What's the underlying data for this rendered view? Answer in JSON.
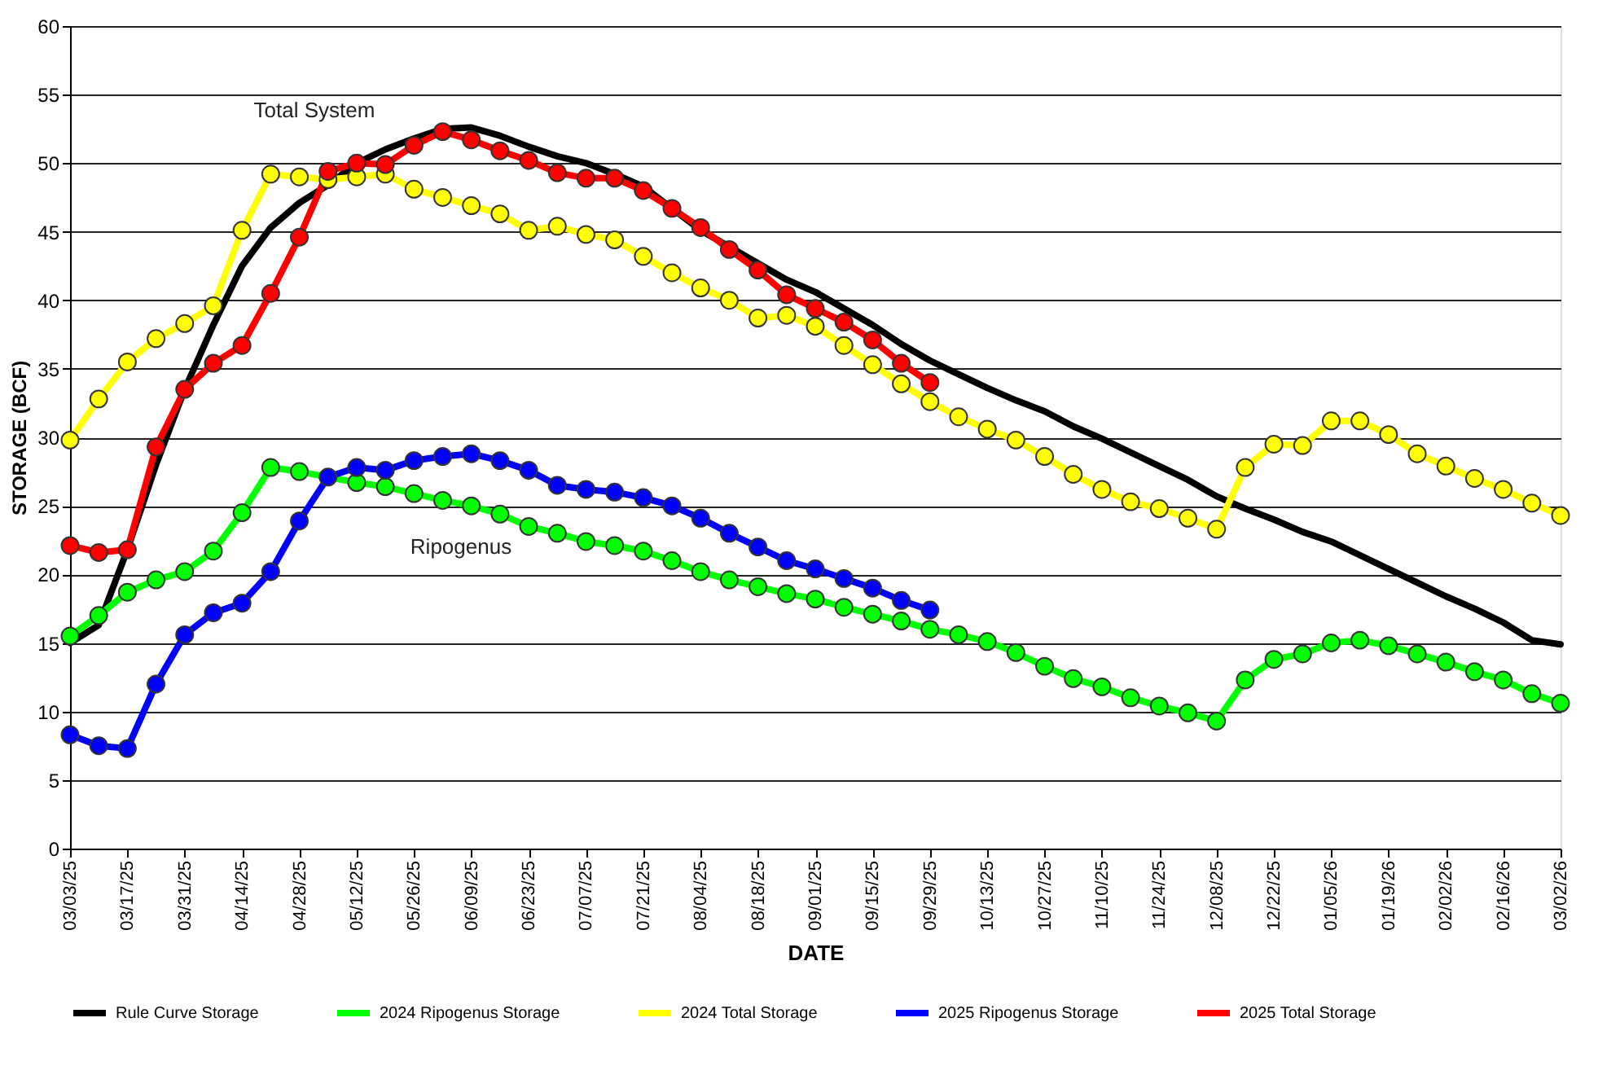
{
  "chart_data": {
    "type": "line",
    "xlabel": "DATE",
    "ylabel": "STORAGE (BCF)",
    "x": [
      "2025-03-03",
      "2025-03-10",
      "2025-03-17",
      "2025-03-24",
      "2025-03-31",
      "2025-04-07",
      "2025-04-14",
      "2025-04-21",
      "2025-04-28",
      "2025-05-05",
      "2025-05-12",
      "2025-05-19",
      "2025-05-26",
      "2025-06-02",
      "2025-06-09",
      "2025-06-16",
      "2025-06-23",
      "2025-06-30",
      "2025-07-07",
      "2025-07-14",
      "2025-07-21",
      "2025-07-28",
      "2025-08-04",
      "2025-08-11",
      "2025-08-18",
      "2025-08-25",
      "2025-09-01",
      "2025-09-08",
      "2025-09-15",
      "2025-09-22",
      "2025-09-29",
      "2025-10-06",
      "2025-10-13",
      "2025-10-20",
      "2025-10-27",
      "2025-11-03",
      "2025-11-10",
      "2025-11-17",
      "2025-11-24",
      "2025-12-01",
      "2025-12-08",
      "2025-12-15",
      "2025-12-22",
      "2025-12-29",
      "2026-01-05",
      "2026-01-12",
      "2026-01-19",
      "2026-01-26",
      "2026-02-02",
      "2026-02-09",
      "2026-02-16",
      "2026-02-23",
      "2026-03-02"
    ],
    "series": [
      {
        "name": "Rule Curve Storage",
        "color": "#000000",
        "marker": "none",
        "values": [
          15.0,
          16.3,
          21.8,
          28.0,
          33.5,
          38.2,
          42.5,
          45.3,
          47.1,
          48.4,
          50.0,
          51.0,
          51.8,
          52.5,
          52.6,
          52.0,
          51.2,
          50.5,
          50.0,
          49.2,
          48.3,
          46.7,
          45.1,
          43.9,
          42.7,
          41.5,
          40.6,
          39.4,
          38.2,
          36.8,
          35.6,
          34.6,
          33.6,
          32.7,
          31.9,
          30.8,
          29.9,
          28.9,
          27.9,
          26.9,
          25.7,
          24.8,
          24.0,
          23.1,
          22.4,
          21.4,
          20.4,
          19.4,
          18.4,
          17.5,
          16.5,
          15.2,
          14.9
        ]
      },
      {
        "name": "2024 Ripogenus Storage",
        "color": "#00ff00",
        "marker": "circle",
        "values": [
          15.5,
          17.0,
          18.7,
          19.6,
          20.2,
          21.7,
          24.5,
          27.8,
          27.5,
          null,
          26.7,
          26.4,
          25.9,
          25.4,
          25.0,
          24.4,
          23.5,
          23.0,
          22.4,
          22.1,
          21.7,
          21.0,
          20.2,
          19.6,
          19.1,
          18.6,
          18.2,
          17.6,
          17.1,
          16.6,
          16.0,
          15.6,
          15.1,
          14.3,
          13.3,
          12.4,
          11.8,
          11.0,
          10.4,
          9.9,
          9.3,
          12.3,
          13.8,
          14.2,
          15.0,
          15.2,
          14.8,
          14.2,
          13.6,
          12.9,
          12.3,
          11.3,
          10.6
        ]
      },
      {
        "name": "2024 Total Storage",
        "color": "#ffff00",
        "marker": "circle",
        "values": [
          29.8,
          32.8,
          35.5,
          37.2,
          38.3,
          39.6,
          45.1,
          49.2,
          49.0,
          48.8,
          49.0,
          49.2,
          48.1,
          47.5,
          46.9,
          46.3,
          45.1,
          45.4,
          44.8,
          44.4,
          43.2,
          42.0,
          40.9,
          40.0,
          38.7,
          38.9,
          38.1,
          36.7,
          35.3,
          33.9,
          32.6,
          31.5,
          30.6,
          29.8,
          28.6,
          27.3,
          26.2,
          25.3,
          24.8,
          24.1,
          23.3,
          27.8,
          29.5,
          29.4,
          31.2,
          31.2,
          30.2,
          28.8,
          27.9,
          27.0,
          26.2,
          25.2,
          24.3
        ]
      },
      {
        "name": "2025 Ripogenus Storage",
        "color": "#0000ff",
        "marker": "circle",
        "values": [
          8.3,
          7.5,
          7.3,
          12.0,
          15.6,
          17.2,
          17.9,
          20.2,
          23.9,
          27.1,
          27.8,
          27.6,
          28.3,
          28.6,
          28.8,
          28.3,
          27.6,
          26.5,
          26.2,
          26.0,
          25.6,
          25.0,
          24.1,
          23.0,
          22.0,
          21.0,
          20.4,
          19.7,
          19.0,
          18.1,
          17.4,
          null,
          null,
          null,
          null,
          null,
          null,
          null,
          null,
          null,
          null,
          null,
          null,
          null,
          null,
          null,
          null,
          null,
          null,
          null,
          null,
          null,
          null
        ]
      },
      {
        "name": "2025 Total Storage",
        "color": "#ff0000",
        "marker": "circle",
        "values": [
          22.1,
          21.6,
          21.8,
          29.3,
          33.5,
          35.4,
          36.7,
          40.5,
          44.6,
          49.4,
          50.0,
          49.9,
          51.3,
          52.3,
          51.7,
          50.9,
          50.2,
          49.3,
          48.9,
          48.9,
          48.0,
          46.7,
          45.3,
          43.7,
          42.2,
          40.4,
          39.4,
          38.4,
          37.1,
          35.4,
          34.0,
          null,
          null,
          null,
          null,
          null,
          null,
          null,
          null,
          null,
          null,
          null,
          null,
          null,
          null,
          null,
          null,
          null,
          null,
          null,
          null,
          null,
          null
        ]
      }
    ],
    "xlim": [
      "2025-03-03",
      "2026-03-02"
    ],
    "xticks": [
      {
        "value": "2025-03-03",
        "label": "03/03/25"
      },
      {
        "value": "2025-03-17",
        "label": "03/17/25"
      },
      {
        "value": "2025-03-31",
        "label": "03/31/25"
      },
      {
        "value": "2025-04-14",
        "label": "04/14/25"
      },
      {
        "value": "2025-04-28",
        "label": "04/28/25"
      },
      {
        "value": "2025-05-12",
        "label": "05/12/25"
      },
      {
        "value": "2025-05-26",
        "label": "05/26/25"
      },
      {
        "value": "2025-06-09",
        "label": "06/09/25"
      },
      {
        "value": "2025-06-23",
        "label": "06/23/25"
      },
      {
        "value": "2025-07-07",
        "label": "07/07/25"
      },
      {
        "value": "2025-07-21",
        "label": "07/21/25"
      },
      {
        "value": "2025-08-04",
        "label": "08/04/25"
      },
      {
        "value": "2025-08-18",
        "label": "08/18/25"
      },
      {
        "value": "2025-09-01",
        "label": "09/01/25"
      },
      {
        "value": "2025-09-15",
        "label": "09/15/25"
      },
      {
        "value": "2025-09-29",
        "label": "09/29/25"
      },
      {
        "value": "2025-10-13",
        "label": "10/13/25"
      },
      {
        "value": "2025-10-27",
        "label": "10/27/25"
      },
      {
        "value": "2025-11-10",
        "label": "11/10/25"
      },
      {
        "value": "2025-11-24",
        "label": "11/24/25"
      },
      {
        "value": "2025-12-08",
        "label": "12/08/25"
      },
      {
        "value": "2025-12-22",
        "label": "12/22/25"
      },
      {
        "value": "2026-01-05",
        "label": "01/05/26"
      },
      {
        "value": "2026-01-19",
        "label": "01/19/26"
      },
      {
        "value": "2026-02-02",
        "label": "02/02/26"
      },
      {
        "value": "2026-02-16",
        "label": "02/16/26"
      },
      {
        "value": "2026-03-02",
        "label": "03/02/26"
      }
    ],
    "ylim": [
      0,
      60
    ],
    "yticks": [
      0,
      5,
      10,
      15,
      20,
      25,
      30,
      35,
      40,
      45,
      50,
      55,
      60
    ],
    "grid": "y",
    "legend": "bottom",
    "line_style": "solid",
    "annotations": [
      "Total System",
      "Ripogenus"
    ]
  }
}
